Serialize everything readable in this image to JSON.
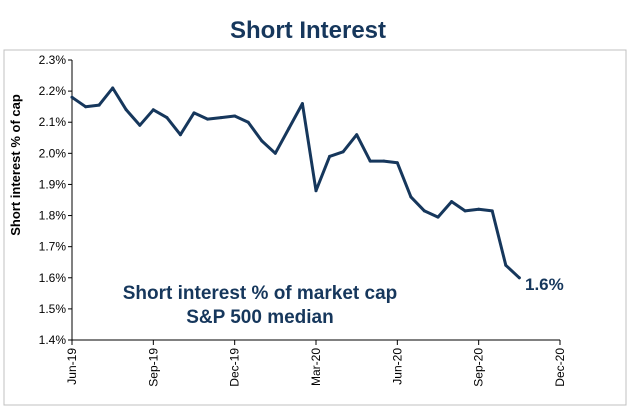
{
  "chart_data": {
    "type": "line",
    "title": "Short Interest",
    "ylabel": "Short interest % of cap",
    "xlabel": "",
    "ylim": [
      1.4,
      2.3
    ],
    "yticks": [
      1.4,
      1.5,
      1.6,
      1.7,
      1.8,
      1.9,
      2.0,
      2.1,
      2.2,
      2.3
    ],
    "ytick_labels": [
      "1.4%",
      "1.5%",
      "1.6%",
      "1.7%",
      "1.8%",
      "1.9%",
      "2.0%",
      "2.1%",
      "2.2%",
      "2.3%"
    ],
    "xlim": [
      0,
      18
    ],
    "xticks": [
      0,
      3,
      6,
      9,
      12,
      15,
      18
    ],
    "xtick_labels": [
      "Jun-19",
      "Sep-19",
      "Dec-19",
      "Mar-20",
      "Jun-20",
      "Sep-20",
      "Dec-20"
    ],
    "grid": false,
    "annotation_lines": [
      "Short interest % of market cap",
      "S&P 500 median"
    ],
    "end_label": "1.6%",
    "colors": {
      "series": "#16375c",
      "text": "#16375c",
      "axis": "#000000",
      "frame": "#c0c0c0"
    },
    "series": [
      {
        "name": "Short interest % of market cap, S&P 500 median",
        "x": [
          0,
          0.5,
          1.0,
          1.5,
          2.0,
          2.5,
          3.0,
          3.5,
          4.0,
          4.5,
          5.0,
          5.5,
          6.0,
          6.5,
          7.0,
          7.5,
          8.0,
          8.5,
          9.0,
          9.5,
          10.0,
          10.5,
          11.0,
          11.5,
          12.0,
          12.5,
          13.0,
          13.5,
          14.0,
          14.5,
          15.0,
          15.5,
          16.0,
          16.5
        ],
        "y": [
          2.18,
          2.15,
          2.155,
          2.21,
          2.14,
          2.09,
          2.14,
          2.115,
          2.06,
          2.13,
          2.11,
          2.115,
          2.12,
          2.1,
          2.04,
          2.0,
          2.08,
          2.16,
          1.88,
          1.99,
          2.005,
          2.06,
          1.975,
          1.975,
          1.97,
          1.86,
          1.815,
          1.795,
          1.845,
          1.815,
          1.82,
          1.815,
          1.64,
          1.6
        ]
      }
    ]
  }
}
